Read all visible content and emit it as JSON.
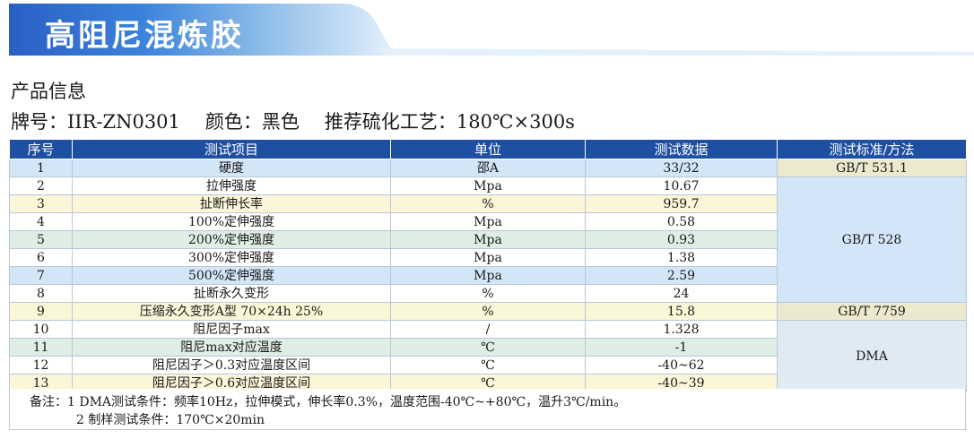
{
  "title": "高阻尼混炼胶",
  "info_heading": "产品信息",
  "info": {
    "brand_label": "牌号：",
    "brand_value": "IIR-ZN0301",
    "color_label": "颜色：",
    "color_value": "黑色",
    "cure_label": "推荐硫化工艺：",
    "cure_value": "180℃×300s"
  },
  "table": {
    "headers": [
      "序号",
      "测试项目",
      "单位",
      "测试数据",
      "测试标准/方法"
    ],
    "rows": [
      {
        "no": "1",
        "item": "硬度",
        "unit": "邵A",
        "value": "33/32"
      },
      {
        "no": "2",
        "item": "拉伸强度",
        "unit": "Mpa",
        "value": "10.67"
      },
      {
        "no": "3",
        "item": "扯断伸长率",
        "unit": "%",
        "value": "959.7"
      },
      {
        "no": "4",
        "item": "100%定伸强度",
        "unit": "Mpa",
        "value": "0.58"
      },
      {
        "no": "5",
        "item": "200%定伸强度",
        "unit": "Mpa",
        "value": "0.93"
      },
      {
        "no": "6",
        "item": "300%定伸强度",
        "unit": "Mpa",
        "value": "1.38"
      },
      {
        "no": "7",
        "item": "500%定伸强度",
        "unit": "Mpa",
        "value": "2.59"
      },
      {
        "no": "8",
        "item": "扯断永久变形",
        "unit": "%",
        "value": "24"
      },
      {
        "no": "9",
        "item": "压缩永久变形A型 70×24h 25%",
        "unit": "%",
        "value": "15.8"
      },
      {
        "no": "10",
        "item": "阻尼因子max",
        "unit": "/",
        "value": "1.328"
      },
      {
        "no": "11",
        "item": "阻尼max对应温度",
        "unit": "℃",
        "value": "-1"
      },
      {
        "no": "12",
        "item": "阻尼因子＞0.3对应温度区间",
        "unit": "℃",
        "value": "-40~62"
      },
      {
        "no": "13",
        "item": "阻尼因子＞0.6对应温度区间",
        "unit": "℃",
        "value": "-40~39"
      }
    ],
    "standards": {
      "s1": "GB/T 531.1",
      "s2": "GB/T 528",
      "s3": "GB/T 7759",
      "s4": "DMA"
    }
  },
  "notes": {
    "line1": "备注：1 DMA测试条件：频率10Hz，拉伸模式，伸长率0.3%，温度范围-40℃~+80℃，温升3℃/min。",
    "line2": "2 制样测试条件：170℃×20min"
  },
  "colors": {
    "header": "#1f4fa1",
    "banner_start": "#2f6bd0",
    "banner_end": "#d6e8f8"
  }
}
